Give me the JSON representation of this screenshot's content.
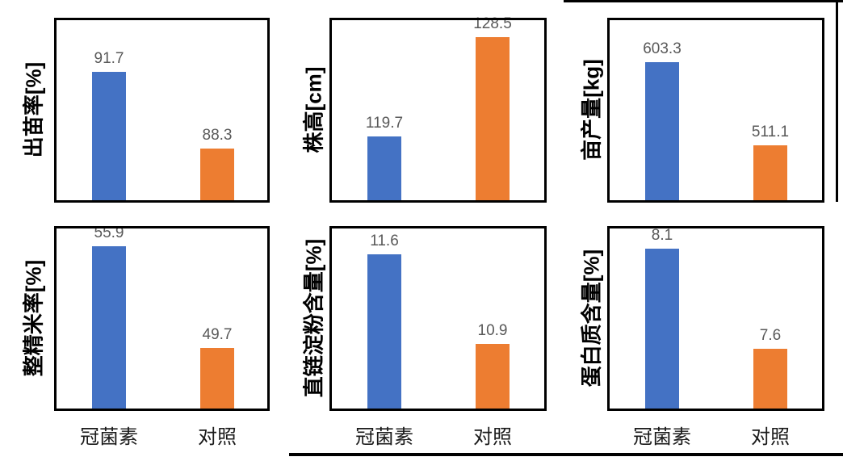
{
  "page": {
    "description_units": [
      "冠菌素",
      "对照"
    ]
  },
  "colors": {
    "bar_colors": [
      "#4472C4",
      "#ED7D31"
    ],
    "value_label": "#595959",
    "axis_text": "#000000",
    "plot_border": "#000000"
  },
  "chart_data": [
    {
      "type": "bar",
      "categories": [
        "冠菌素",
        "对照"
      ],
      "values": [
        91.7,
        88.3
      ],
      "value_labels": [
        "91.7",
        "88.3"
      ],
      "title": "",
      "xlabel": "",
      "ylabel": "出苗率[%]",
      "ylim": [
        86,
        94
      ],
      "grid": false,
      "legend": false,
      "show_x_labels": false
    },
    {
      "type": "bar",
      "categories": [
        "冠菌素",
        "对照"
      ],
      "values": [
        119.7,
        128.5
      ],
      "value_labels": [
        "119.7",
        "128.5"
      ],
      "title": "",
      "xlabel": "",
      "ylabel": "株高[cm]",
      "ylim": [
        114,
        130
      ],
      "grid": false,
      "legend": false,
      "show_x_labels": false
    },
    {
      "type": "bar",
      "categories": [
        "冠菌素",
        "对照"
      ],
      "values": [
        603.3,
        511.1
      ],
      "value_labels": [
        "603.3",
        "511.1"
      ],
      "title": "",
      "xlabel": "",
      "ylabel": "亩产量[kg]",
      "ylim": [
        450,
        650
      ],
      "grid": false,
      "legend": false,
      "show_x_labels": false
    },
    {
      "type": "bar",
      "categories": [
        "冠菌素",
        "对照"
      ],
      "values": [
        55.9,
        49.7
      ],
      "value_labels": [
        "55.9",
        "49.7"
      ],
      "title": "",
      "xlabel": "",
      "ylabel": "整精米率[%]",
      "ylim": [
        46,
        57
      ],
      "grid": false,
      "legend": false,
      "show_x_labels": true
    },
    {
      "type": "bar",
      "categories": [
        "冠菌素",
        "对照"
      ],
      "values": [
        11.6,
        10.9
      ],
      "value_labels": [
        "11.6",
        "10.9"
      ],
      "title": "",
      "xlabel": "",
      "ylabel": "直链淀粉含量[%]",
      "ylim": [
        10.4,
        11.8
      ],
      "grid": false,
      "legend": false,
      "show_x_labels": true
    },
    {
      "type": "bar",
      "categories": [
        "冠菌素",
        "对照"
      ],
      "values": [
        8.1,
        7.6
      ],
      "value_labels": [
        "8.1",
        "7.6"
      ],
      "title": "",
      "xlabel": "",
      "ylabel": "蛋白质含量[%]",
      "ylim": [
        7.3,
        8.2
      ],
      "grid": false,
      "legend": false,
      "show_x_labels": true
    }
  ]
}
